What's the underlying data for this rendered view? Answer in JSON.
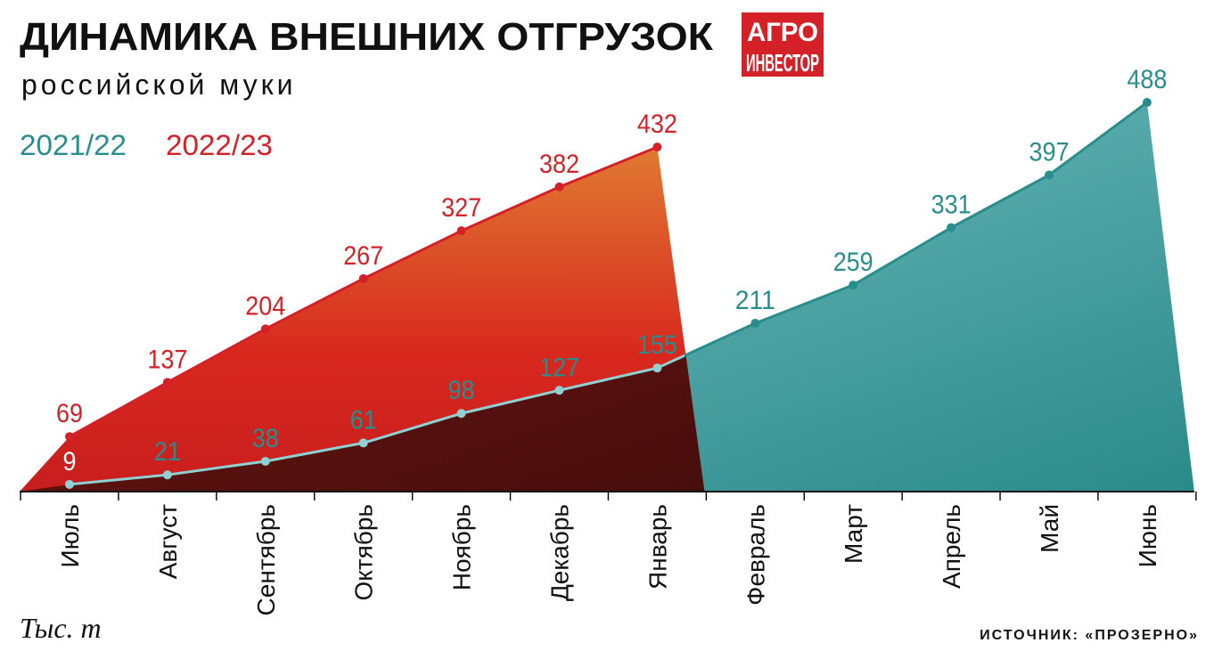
{
  "chart_data": {
    "type": "area",
    "title": "ДИНАМИКА ВНЕШНИХ ОТГРУЗОК",
    "subtitle": "российской муки",
    "logo": [
      "АГРО",
      "ИНВЕСТОР"
    ],
    "unit": "Тыс. т",
    "source": "ИСТОЧНИК: «ПРОЗЕРНО»",
    "categories": [
      "Июль",
      "Август",
      "Сентябрь",
      "Октябрь",
      "Ноябрь",
      "Декабрь",
      "Январь",
      "Февраль",
      "Март",
      "Апрель",
      "Май",
      "Июнь"
    ],
    "series": [
      {
        "name": "2021/22",
        "color": "#2a8d8d",
        "values": [
          9,
          21,
          38,
          61,
          98,
          127,
          155,
          211,
          259,
          331,
          397,
          488
        ]
      },
      {
        "name": "2022/23",
        "color": "#d42128",
        "values": [
          69,
          137,
          204,
          267,
          327,
          382,
          432,
          null,
          null,
          null,
          null,
          null
        ]
      }
    ],
    "ylim": [
      0,
      488
    ]
  }
}
